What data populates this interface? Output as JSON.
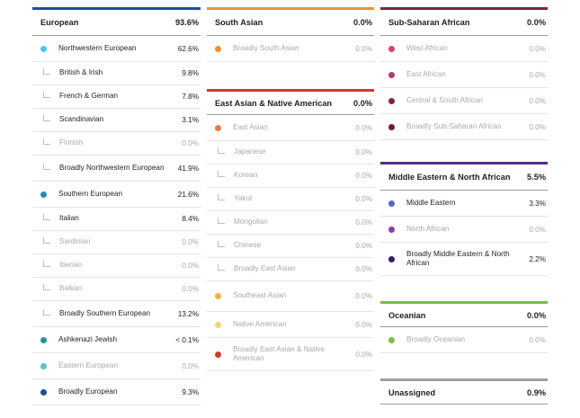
{
  "colors": {
    "european": "#1f4e9c",
    "south_asian": "#f0922d",
    "east_asian": "#d23a2a",
    "ssa": "#8a1d43",
    "mena": "#5b2a86",
    "oceanian": "#7ac143",
    "unassigned": "#9e9e9e"
  },
  "european": {
    "title": "European",
    "pct": "93.6%",
    "rows": [
      {
        "name": "Northwestern European",
        "pct": "62.6%",
        "dot": "#4ec5ef",
        "sub": false,
        "faded": false
      },
      {
        "name": "British & Irish",
        "pct": "9.8%",
        "sub": true,
        "faded": false
      },
      {
        "name": "French & German",
        "pct": "7.8%",
        "sub": true,
        "faded": false
      },
      {
        "name": "Scandinavian",
        "pct": "3.1%",
        "sub": true,
        "faded": false
      },
      {
        "name": "Finnish",
        "pct": "0.0%",
        "sub": true,
        "faded": true
      },
      {
        "name": "Broadly Northwestern European",
        "pct": "41.9%",
        "sub": true,
        "faded": false
      },
      {
        "name": "Southern European",
        "pct": "21.6%",
        "dot": "#2a86be",
        "sub": false,
        "faded": false
      },
      {
        "name": "Italian",
        "pct": "8.4%",
        "sub": true,
        "faded": false
      },
      {
        "name": "Sardinian",
        "pct": "0.0%",
        "sub": true,
        "faded": true
      },
      {
        "name": "Iberian",
        "pct": "0.0%",
        "sub": true,
        "faded": true
      },
      {
        "name": "Balkan",
        "pct": "0.0%",
        "sub": true,
        "faded": true
      },
      {
        "name": "Broadly Southern European",
        "pct": "13.2%",
        "sub": true,
        "faded": false
      },
      {
        "name": "Ashkenazi Jewish",
        "pct": "< 0.1%",
        "dot": "#2f8f9d",
        "sub": false,
        "faded": false
      },
      {
        "name": "Eastern European",
        "pct": "0.0%",
        "dot": "#5bc2c2",
        "sub": false,
        "faded": true
      },
      {
        "name": "Broadly European",
        "pct": "9.3%",
        "dot": "#1c4f8a",
        "sub": false,
        "faded": false
      }
    ]
  },
  "south_asian": {
    "title": "South Asian",
    "pct": "0.0%",
    "rows": [
      {
        "name": "Broadly South Asian",
        "pct": "0.0%",
        "dot": "#f0922d",
        "sub": false,
        "faded": true
      }
    ]
  },
  "east_asian": {
    "title": "East Asian & Native American",
    "pct": "0.0%",
    "rows": [
      {
        "name": "East Asian",
        "pct": "0.0%",
        "dot": "#f07a3a",
        "sub": false,
        "faded": true
      },
      {
        "name": "Japanese",
        "pct": "0.0%",
        "sub": true,
        "faded": true
      },
      {
        "name": "Korean",
        "pct": "0.0%",
        "sub": true,
        "faded": true
      },
      {
        "name": "Yakut",
        "pct": "0.0%",
        "sub": true,
        "faded": true
      },
      {
        "name": "Mongolian",
        "pct": "0.0%",
        "sub": true,
        "faded": true
      },
      {
        "name": "Chinese",
        "pct": "0.0%",
        "sub": true,
        "faded": true
      },
      {
        "name": "Broadly East Asian",
        "pct": "0.0%",
        "sub": true,
        "faded": true
      },
      {
        "name": "Southeast Asian",
        "pct": "0.0%",
        "dot": "#f5b342",
        "sub": false,
        "faded": true
      },
      {
        "name": "Native American",
        "pct": "0.0%",
        "dot": "#f7d56b",
        "sub": false,
        "faded": true
      },
      {
        "name": "Broadly East Asian & Native American",
        "pct": "0.0%",
        "dot": "#d23a2a",
        "sub": false,
        "faded": true
      }
    ]
  },
  "ssa": {
    "title": "Sub-Saharan African",
    "pct": "0.0%",
    "rows": [
      {
        "name": "West African",
        "pct": "0.0%",
        "dot": "#d6407a",
        "sub": false,
        "faded": true
      },
      {
        "name": "East African",
        "pct": "0.0%",
        "dot": "#b03c76",
        "sub": false,
        "faded": true
      },
      {
        "name": "Central & South African",
        "pct": "0.0%",
        "dot": "#8a1d43",
        "sub": false,
        "faded": true
      },
      {
        "name": "Broadly Sub-Saharan African",
        "pct": "0.0%",
        "dot": "#7a1530",
        "sub": false,
        "faded": true
      }
    ]
  },
  "mena": {
    "title": "Middle Eastern & North African",
    "pct": "5.5%",
    "rows": [
      {
        "name": "Middle Eastern",
        "pct": "3.3%",
        "dot": "#5b64c8",
        "sub": false,
        "faded": false
      },
      {
        "name": "North African",
        "pct": "0.0%",
        "dot": "#8e3fa0",
        "sub": false,
        "faded": true
      },
      {
        "name": "Broadly Middle Eastern & North African",
        "pct": "2.2%",
        "dot": "#3a1a5e",
        "sub": false,
        "faded": false
      }
    ]
  },
  "oceanian": {
    "title": "Oceanian",
    "pct": "0.0%",
    "rows": [
      {
        "name": "Broadly Oceanian",
        "pct": "0.0%",
        "dot": "#7ac143",
        "sub": false,
        "faded": true
      }
    ]
  },
  "unassigned": {
    "title": "Unassigned",
    "pct": "0.9%",
    "rows": []
  }
}
